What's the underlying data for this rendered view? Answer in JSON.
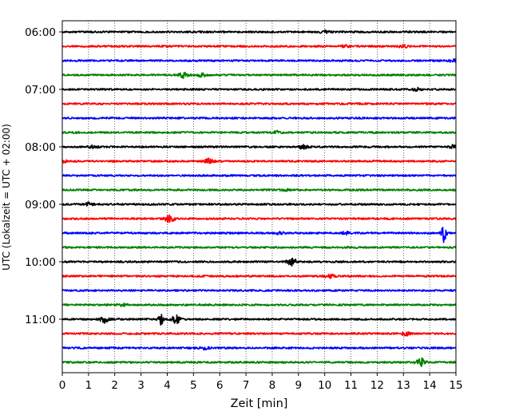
{
  "chart_data": {
    "type": "line",
    "subtype": "helicorder-seismogram",
    "title": "",
    "xlabel": "Zeit  [min]",
    "ylabel": "UTC (Lokalzeit = UTC + 02:00)",
    "xlim": [
      0,
      15
    ],
    "x_ticks": [
      0,
      1,
      2,
      3,
      4,
      5,
      6,
      7,
      8,
      9,
      10,
      11,
      12,
      13,
      14,
      15
    ],
    "x_grid": "dotted vertical at every minute",
    "y_ticks": [
      {
        "label": "06:00",
        "row": 0
      },
      {
        "label": "07:00",
        "row": 4
      },
      {
        "label": "08:00",
        "row": 8
      },
      {
        "label": "09:00",
        "row": 12
      },
      {
        "label": "10:00",
        "row": 16
      },
      {
        "label": "11:00",
        "row": 20
      }
    ],
    "row_interval_min": 15,
    "color_cycle": [
      "#000000",
      "#ff0000",
      "#0000ff",
      "#008000"
    ],
    "series": [
      {
        "start": "06:00",
        "events": [
          {
            "t": 10.0,
            "amp": 1.5
          }
        ]
      },
      {
        "start": "06:15",
        "events": [
          {
            "t": 10.8,
            "amp": 1.3
          },
          {
            "t": 13.0,
            "amp": 1.6
          }
        ]
      },
      {
        "start": "06:30",
        "events": [
          {
            "t": 14.9,
            "amp": 1.5
          }
        ]
      },
      {
        "start": "06:45",
        "events": [
          {
            "t": 4.6,
            "amp": 4.0
          },
          {
            "t": 5.3,
            "amp": 2.0
          }
        ]
      },
      {
        "start": "07:00",
        "events": [
          {
            "t": 13.5,
            "amp": 1.6
          }
        ]
      },
      {
        "start": "07:15",
        "events": []
      },
      {
        "start": "07:30",
        "events": []
      },
      {
        "start": "07:45",
        "events": [
          {
            "t": 8.2,
            "amp": 1.5
          }
        ]
      },
      {
        "start": "08:00",
        "events": [
          {
            "t": 1.2,
            "amp": 1.5
          },
          {
            "t": 9.2,
            "amp": 2.5
          },
          {
            "t": 14.9,
            "amp": 2.0
          }
        ]
      },
      {
        "start": "08:15",
        "events": [
          {
            "t": 0.0,
            "amp": 2.0
          },
          {
            "t": 5.6,
            "amp": 3.0
          }
        ]
      },
      {
        "start": "08:30",
        "events": []
      },
      {
        "start": "08:45",
        "events": [
          {
            "t": 8.5,
            "amp": 1.3
          }
        ]
      },
      {
        "start": "09:00",
        "events": [
          {
            "t": 1.0,
            "amp": 2.0
          }
        ]
      },
      {
        "start": "09:15",
        "events": [
          {
            "t": 4.1,
            "amp": 5.0
          }
        ]
      },
      {
        "start": "09:30",
        "events": [
          {
            "t": 8.3,
            "amp": 1.5
          },
          {
            "t": 10.8,
            "amp": 1.5
          },
          {
            "t": 14.55,
            "amp": 12.0
          }
        ]
      },
      {
        "start": "09:45",
        "events": []
      },
      {
        "start": "10:00",
        "events": [
          {
            "t": 8.75,
            "amp": 4.5
          }
        ]
      },
      {
        "start": "10:15",
        "events": [
          {
            "t": 10.2,
            "amp": 2.5
          }
        ]
      },
      {
        "start": "10:30",
        "events": []
      },
      {
        "start": "10:45",
        "events": [
          {
            "t": 2.3,
            "amp": 1.6
          }
        ]
      },
      {
        "start": "11:00",
        "events": [
          {
            "t": 1.6,
            "amp": 4.0
          },
          {
            "t": 3.75,
            "amp": 6.5
          },
          {
            "t": 4.35,
            "amp": 5.0
          }
        ]
      },
      {
        "start": "11:15",
        "events": [
          {
            "t": 13.1,
            "amp": 2.0
          }
        ]
      },
      {
        "start": "11:30",
        "events": [
          {
            "t": 5.4,
            "amp": 1.5
          }
        ]
      },
      {
        "start": "11:45",
        "events": [
          {
            "t": 13.65,
            "amp": 5.5
          }
        ]
      }
    ]
  }
}
